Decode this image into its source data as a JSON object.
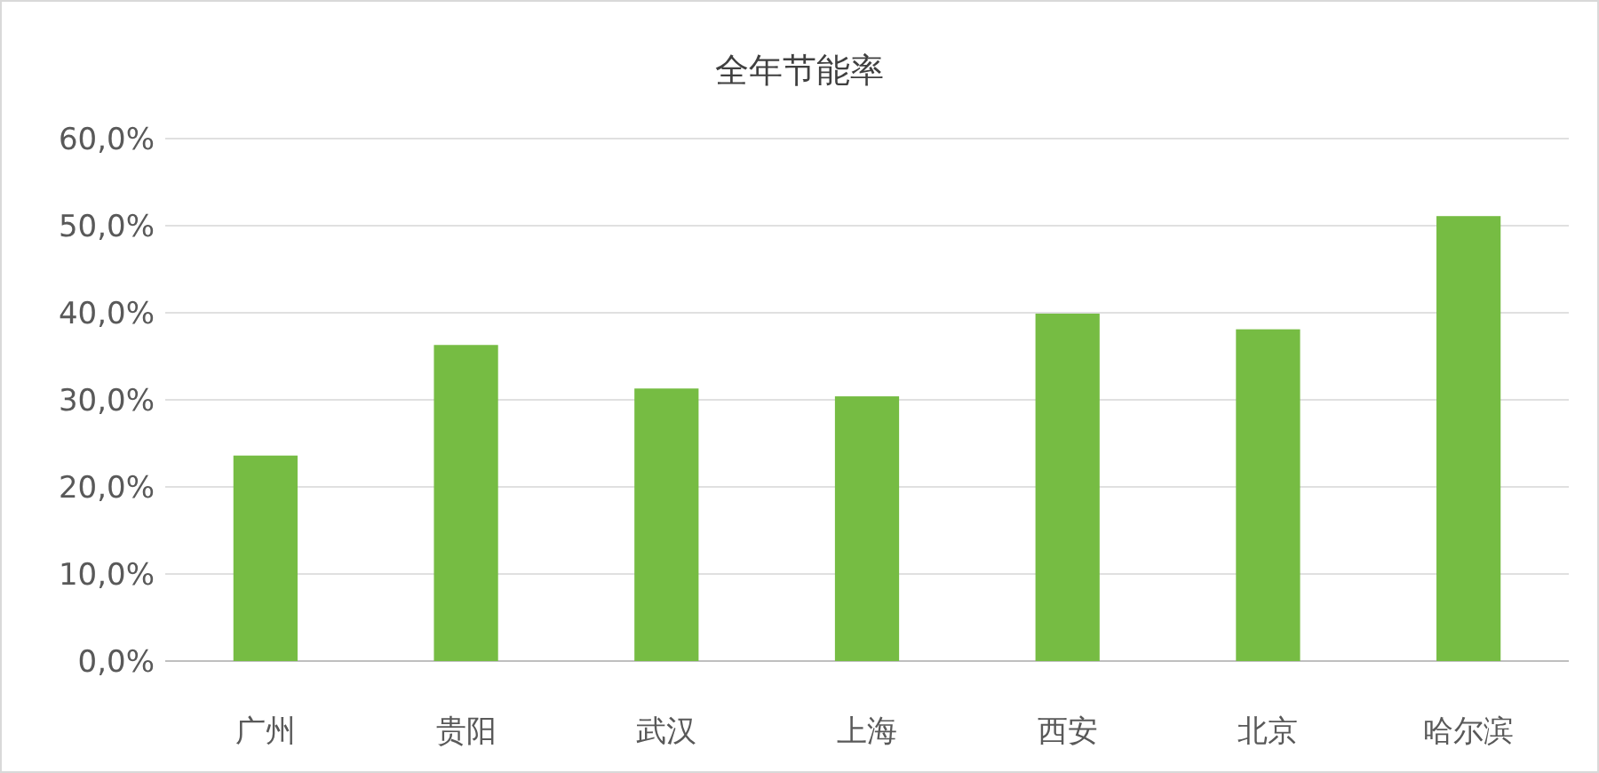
{
  "chart_data": {
    "type": "bar",
    "title": "全年节能率",
    "categories": [
      "广州",
      "贵阳",
      "武汉",
      "上海",
      "西安",
      "北京",
      "哈尔滨"
    ],
    "values": [
      23.6,
      36.3,
      31.3,
      30.4,
      39.9,
      38.1,
      51.1
    ],
    "color": "#76bc43",
    "ylim": [
      0,
      60
    ],
    "yticks": [
      {
        "value": 0,
        "label": "0,0%"
      },
      {
        "value": 10,
        "label": "10,0%"
      },
      {
        "value": 20,
        "label": "20,0%"
      },
      {
        "value": 30,
        "label": "30,0%"
      },
      {
        "value": 40,
        "label": "40,0%"
      },
      {
        "value": 50,
        "label": "50,0%"
      },
      {
        "value": 60,
        "label": "60,0%"
      }
    ],
    "grid": "y"
  }
}
